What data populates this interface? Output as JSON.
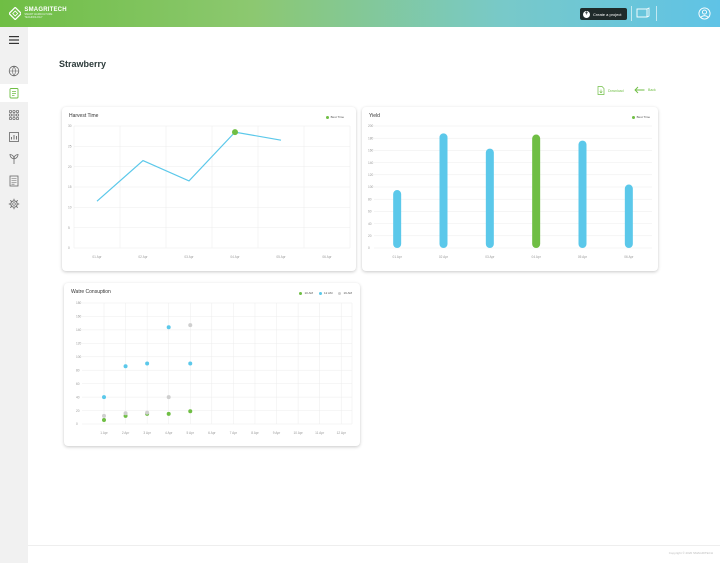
{
  "brand": {
    "name": "SMAGRITECH",
    "tagline": "SMART AGRICULTURE TECHNOLOGY"
  },
  "header": {
    "create_label": "Create a project"
  },
  "colors": {
    "green": "#6fbe44",
    "blue": "#5bc8ea",
    "gray": "#cfcfcf"
  },
  "sidebar": {
    "items": [
      {
        "icon": "globe-leaf-icon"
      },
      {
        "icon": "clipboard-icon",
        "active": true
      },
      {
        "icon": "grid-dots-icon"
      },
      {
        "icon": "report-chart-icon"
      },
      {
        "icon": "plant-gear-icon"
      },
      {
        "icon": "document-icon"
      },
      {
        "icon": "settings-gear-icon"
      }
    ]
  },
  "page": {
    "title": "Strawberry",
    "download_label": "Download",
    "back_label": "Back"
  },
  "harvest": {
    "chart_data": {
      "type": "line",
      "title": "Harvest Time",
      "categories": [
        "01 Apr",
        "02 Apr",
        "03 Apr",
        "04 Apr",
        "05 Apr",
        "06 Apr"
      ],
      "yticks": [
        0,
        5,
        10,
        15,
        20,
        25,
        30
      ],
      "ylim": [
        0,
        30
      ],
      "series": [
        {
          "name": "Best Time",
          "values": [
            11.5,
            21.5,
            16.5,
            28.5,
            26.5,
            null
          ]
        }
      ],
      "highlight_index": 3,
      "grid": true
    }
  },
  "yield": {
    "chart_data": {
      "type": "bar",
      "title": "Yield",
      "categories": [
        "01 Apr",
        "02 Apr",
        "03 Apr",
        "04 Apr",
        "05 Apr",
        "06 Apr"
      ],
      "yticks": [
        0,
        20,
        40,
        60,
        80,
        100,
        120,
        140,
        160,
        180,
        200
      ],
      "ylim": [
        0,
        200
      ],
      "series": [
        {
          "name": "Best Time",
          "values": [
            95,
            188,
            163,
            186,
            176,
            104
          ]
        }
      ],
      "highlight_index": 3,
      "grid": true
    }
  },
  "water": {
    "chart_data": {
      "type": "scatter",
      "title": "Watre Consuption",
      "categories": [
        "1 Apr",
        "2 Apr",
        "3 Apr",
        "4 Apr",
        "5 Apr",
        "6 Apr",
        "7 Apr",
        "8 Apr",
        "9 Apr",
        "10 Apr",
        "11 Apr",
        "12 Apr"
      ],
      "yticks": [
        0,
        20,
        40,
        60,
        80,
        100,
        120,
        140,
        160,
        180
      ],
      "ylim": [
        0,
        180
      ],
      "series": [
        {
          "name": "10 AM",
          "color": "#6fbe44",
          "values": [
            6,
            12,
            15,
            15,
            19,
            null,
            null,
            null,
            null,
            null,
            null,
            null
          ]
        },
        {
          "name": "12 AM",
          "color": "#5bc8ea",
          "values": [
            40,
            86,
            90,
            144,
            90,
            null,
            null,
            null,
            null,
            null,
            null,
            null
          ]
        },
        {
          "name": "19 AM",
          "color": "#cfcfcf",
          "values": [
            12,
            16,
            17,
            40,
            147,
            null,
            null,
            null,
            null,
            null,
            null,
            null
          ]
        }
      ],
      "grid": true
    }
  },
  "footer": {
    "copyright": "Copyright © 2020 SMAGRITECH"
  }
}
